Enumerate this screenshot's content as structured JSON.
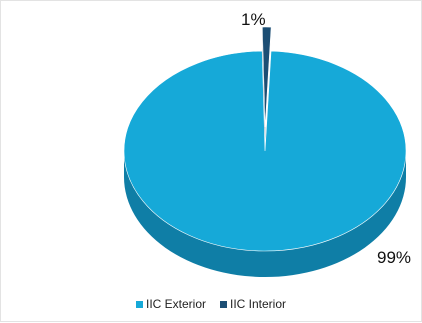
{
  "chart_data": {
    "type": "pie",
    "title": "",
    "categories": [
      "IIC Exterior",
      "IIC Interior"
    ],
    "values": [
      99,
      1
    ],
    "data_labels": [
      "99%",
      "1%"
    ],
    "colors": [
      "#16a9d8",
      "#1c4e74"
    ],
    "side_colors": [
      "#0f7ea6",
      "#133a58"
    ],
    "legend": {
      "position": "bottom",
      "entries": [
        {
          "label": "IIC Exterior",
          "color": "#16a9d8"
        },
        {
          "label": "IIC Interior",
          "color": "#1c4e74"
        }
      ]
    },
    "style": "3d-exploded"
  }
}
